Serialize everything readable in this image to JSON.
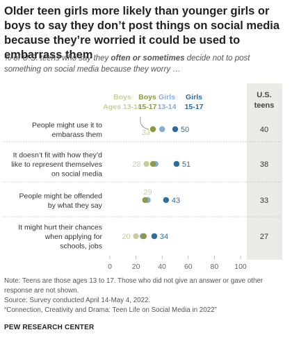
{
  "title": "Older teen girls more likely than younger girls or boys to say they don’t post things on social media because they’re worried it could be used to embarrass them",
  "subtitle_pre": "% of U.S. teens who say they ",
  "subtitle_emph": "often or sometimes",
  "subtitle_post": " decide not to post something on social media because they worry …",
  "notes": {
    "note": "Note: Teens are those ages 13 to 17. Those who did not give an answer or gave other response are not shown.",
    "source": "Source: Survey conducted April 14-May 4, 2022.",
    "report": "“Connection, Creativity and Drama: Teen Life on Social Media in 2022”"
  },
  "org": "PEW RESEARCH CENTER",
  "chart_data": {
    "type": "scatter",
    "xlim": [
      0,
      100
    ],
    "x_ticks": [
      "0",
      "20",
      "40",
      "60",
      "80",
      "100"
    ],
    "series": [
      {
        "name": "Boys Ages 13-14",
        "color": "#c8cd9c"
      },
      {
        "name": "Boys 15-17",
        "color": "#8a9a45"
      },
      {
        "name": "Girls 13-14",
        "color": "#85add6"
      },
      {
        "name": "Girls 15-17",
        "color": "#2e6c9e"
      }
    ],
    "legend_labels": [
      {
        "line1": "Boys",
        "line2": "Ages 13-14",
        "color": "#c8cd9c"
      },
      {
        "line1": "Boys",
        "line2": "15-17",
        "color": "#8a9a45"
      },
      {
        "line1": "Girls",
        "line2": "13-14",
        "color": "#85add6"
      },
      {
        "line1": "Girls",
        "line2": "15-17",
        "color": "#2e6c9e"
      }
    ],
    "total_header": [
      "U.S.",
      "teens"
    ],
    "categories": [
      {
        "label": [
          "People might use it to",
          "embarass them"
        ],
        "values": [
          33,
          33,
          40,
          50
        ],
        "labels": [
          {
            "series": 0,
            "text": "33"
          },
          {
            "series": 3,
            "text": "50"
          }
        ],
        "total": "40"
      },
      {
        "label": [
          "It doesn’t fit with how they’d",
          "like to represent themselves",
          "on social media"
        ],
        "values": [
          28,
          33,
          35,
          51
        ],
        "labels": [
          {
            "series": 0,
            "text": "28"
          },
          {
            "series": 3,
            "text": "51"
          }
        ],
        "total": "38"
      },
      {
        "label": [
          "People might be offended",
          "by what they say"
        ],
        "values": [
          29,
          27,
          29,
          43
        ],
        "labels": [
          {
            "series": 0,
            "text": "29"
          },
          {
            "series": 3,
            "text": "43"
          }
        ],
        "total": "33"
      },
      {
        "label": [
          "It might hurt their chances",
          "when applying for",
          "schools, jobs"
        ],
        "values": [
          20,
          26,
          25,
          34
        ],
        "labels": [
          {
            "series": 0,
            "text": "20"
          },
          {
            "series": 3,
            "text": "34"
          }
        ],
        "total": "27"
      }
    ]
  }
}
